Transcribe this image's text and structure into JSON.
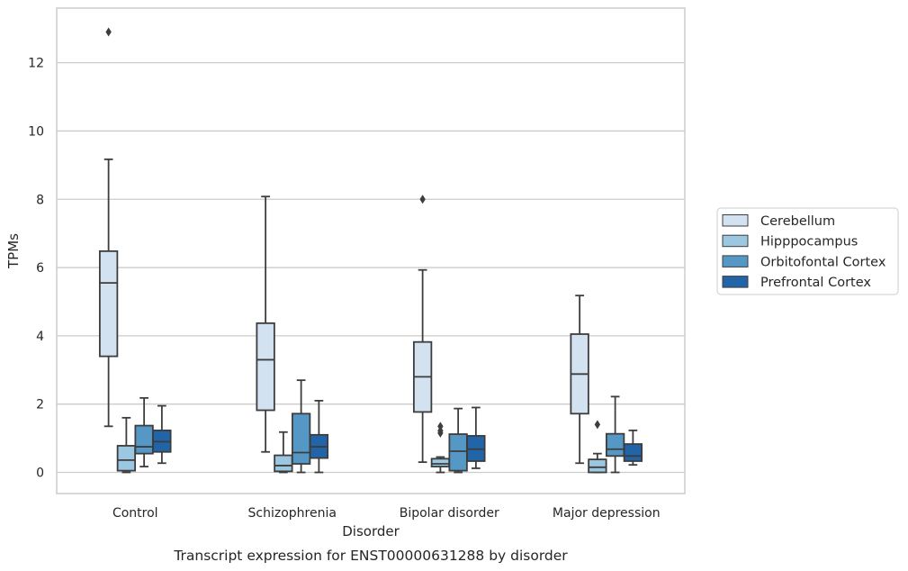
{
  "chart_data": {
    "type": "box",
    "caption": "Transcript expression for ENST00000631288 by disorder",
    "xlabel": "Disorder",
    "ylabel": "TPMs",
    "ylim": [
      -0.62,
      13.6
    ],
    "yticks": [
      0,
      2,
      4,
      6,
      8,
      10,
      12
    ],
    "grid": "horizontal",
    "legend_position": "right",
    "categories": [
      "Control",
      "Schizophrenia",
      "Bipolar disorder",
      "Major depression"
    ],
    "series": [
      {
        "name": "Cerebellum",
        "color": "#d2e2f1",
        "boxes": [
          {
            "whislo": 1.35,
            "q1": 3.4,
            "med": 5.55,
            "q3": 6.48,
            "whishi": 9.17,
            "fliers": [
              12.9
            ]
          },
          {
            "whislo": 0.6,
            "q1": 1.82,
            "med": 3.3,
            "q3": 4.37,
            "whishi": 8.08,
            "fliers": []
          },
          {
            "whislo": 0.3,
            "q1": 1.77,
            "med": 2.8,
            "q3": 3.82,
            "whishi": 5.93,
            "fliers": [
              8.0
            ]
          },
          {
            "whislo": 0.27,
            "q1": 1.72,
            "med": 2.88,
            "q3": 4.05,
            "whishi": 5.18,
            "fliers": []
          }
        ]
      },
      {
        "name": "Hipppocampus",
        "color": "#9bc7e0",
        "boxes": [
          {
            "whislo": 0.0,
            "q1": 0.05,
            "med": 0.36,
            "q3": 0.78,
            "whishi": 1.6,
            "fliers": []
          },
          {
            "whislo": 0.0,
            "q1": 0.03,
            "med": 0.2,
            "q3": 0.5,
            "whishi": 1.18,
            "fliers": []
          },
          {
            "whislo": 0.0,
            "q1": 0.17,
            "med": 0.25,
            "q3": 0.4,
            "whishi": 0.45,
            "fliers": [
              1.15,
              1.22,
              1.35
            ]
          },
          {
            "whislo": 0.0,
            "q1": 0.0,
            "med": 0.15,
            "q3": 0.38,
            "whishi": 0.55,
            "fliers": [
              1.4
            ]
          }
        ]
      },
      {
        "name": "Orbitofontal Cortex",
        "color": "#5597c5",
        "boxes": [
          {
            "whislo": 0.17,
            "q1": 0.55,
            "med": 0.75,
            "q3": 1.37,
            "whishi": 2.18,
            "fliers": []
          },
          {
            "whislo": 0.0,
            "q1": 0.25,
            "med": 0.58,
            "q3": 1.72,
            "whishi": 2.7,
            "fliers": []
          },
          {
            "whislo": 0.0,
            "q1": 0.05,
            "med": 0.62,
            "q3": 1.12,
            "whishi": 1.87,
            "fliers": []
          },
          {
            "whislo": 0.0,
            "q1": 0.48,
            "med": 0.68,
            "q3": 1.13,
            "whishi": 2.22,
            "fliers": []
          }
        ]
      },
      {
        "name": "Prefrontal Cortex",
        "color": "#2264a8",
        "boxes": [
          {
            "whislo": 0.27,
            "q1": 0.6,
            "med": 0.9,
            "q3": 1.23,
            "whishi": 1.95,
            "fliers": []
          },
          {
            "whislo": 0.0,
            "q1": 0.42,
            "med": 0.75,
            "q3": 1.1,
            "whishi": 2.1,
            "fliers": []
          },
          {
            "whislo": 0.12,
            "q1": 0.33,
            "med": 0.68,
            "q3": 1.07,
            "whishi": 1.9,
            "fliers": []
          },
          {
            "whislo": 0.22,
            "q1": 0.33,
            "med": 0.48,
            "q3": 0.83,
            "whishi": 1.23,
            "fliers": []
          }
        ]
      }
    ]
  }
}
